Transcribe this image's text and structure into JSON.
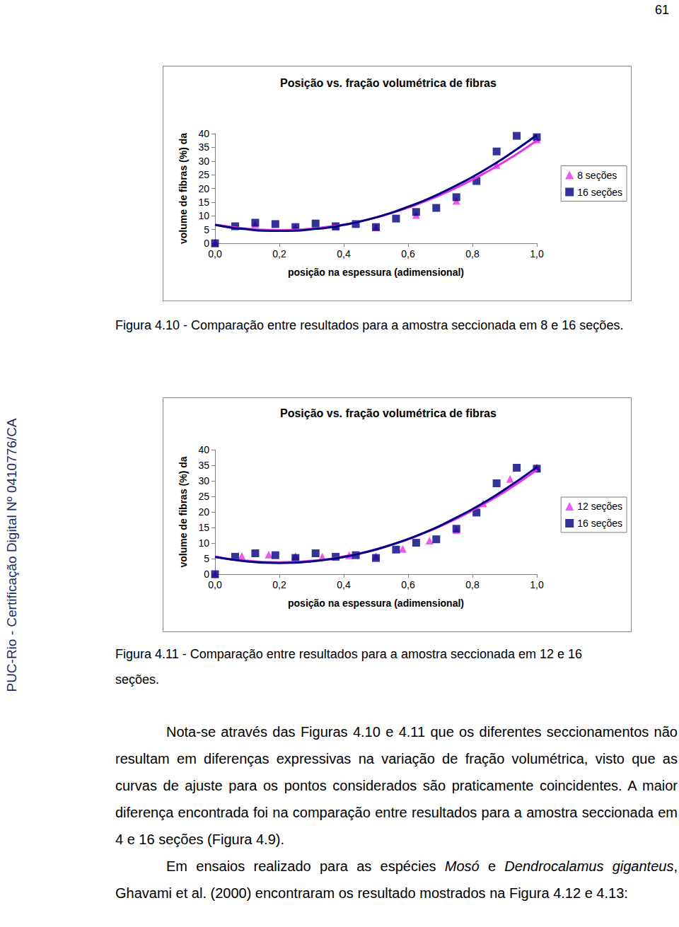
{
  "page_number": "61",
  "sidebar": "PUC-Rio - Certificação Digital Nº 0410776/CA",
  "chart_data": [
    {
      "type": "scatter",
      "title": "Posição vs. fração volumétrica de fibras",
      "x_label": "posição na espessura (adimensional)",
      "y_label": "volume de fibras (%) da",
      "xlim": [
        0,
        1
      ],
      "xticks": [
        {
          "value": 0,
          "label": "0,0"
        },
        {
          "value": 0.2,
          "label": "0,2"
        },
        {
          "value": 0.4,
          "label": "0,4"
        },
        {
          "value": 0.6,
          "label": "0,6"
        },
        {
          "value": 0.8,
          "label": "0,8"
        },
        {
          "value": 1,
          "label": "1,0"
        }
      ],
      "ylim": [
        0,
        40
      ],
      "yticks": [
        0,
        5,
        10,
        15,
        20,
        25,
        30,
        35,
        40
      ],
      "grid": false,
      "legend": "right",
      "series": [
        {
          "name": "8 seções",
          "type": "scatter",
          "color": "#e633e6",
          "marker": "triangle",
          "x": [
            0,
            0.125,
            0.25,
            0.375,
            0.5,
            0.625,
            0.75,
            0.875,
            1
          ],
          "values": [
            0,
            7.0,
            5.9,
            6.0,
            5.8,
            10.3,
            15.5,
            28.6,
            37.9
          ]
        },
        {
          "name": "16 seções",
          "type": "scatter",
          "color": "#000080",
          "marker": "square",
          "x": [
            0,
            0.0625,
            0.125,
            0.1875,
            0.25,
            0.3125,
            0.375,
            0.4375,
            0.5,
            0.5625,
            0.625,
            0.6875,
            0.75,
            0.8125,
            0.875,
            0.9375,
            1
          ],
          "values": [
            0,
            6.2,
            7.5,
            7.0,
            5.9,
            7.2,
            6.2,
            7.0,
            5.9,
            9.0,
            11.4,
            12.9,
            16.8,
            22.7,
            33.5,
            39.2,
            38.7
          ]
        },
        {
          "type": "line",
          "color": "#e633e6",
          "marker": "none",
          "line_style": "solid",
          "x": [
            0,
            0.05,
            0.1,
            0.15,
            0.2,
            0.25,
            0.3,
            0.35,
            0.4,
            0.45,
            0.5,
            0.55,
            0.6,
            0.65,
            0.7,
            0.75,
            0.8,
            0.85,
            0.9,
            0.95,
            1
          ],
          "values": [
            6.8,
            6.0,
            5.3,
            4.9,
            4.8,
            4.9,
            5.3,
            6.0,
            6.8,
            8.0,
            9.4,
            11.1,
            13.0,
            15.2,
            17.6,
            20.3,
            23.2,
            26.4,
            29.8,
            33.5,
            37.5
          ]
        },
        {
          "type": "line",
          "color": "#000080",
          "marker": "none",
          "line_style": "solid",
          "x": [
            0,
            0.05,
            0.1,
            0.15,
            0.2,
            0.25,
            0.3,
            0.35,
            0.4,
            0.45,
            0.5,
            0.55,
            0.6,
            0.65,
            0.7,
            0.75,
            0.8,
            0.85,
            0.9,
            0.95,
            1
          ],
          "values": [
            6.7,
            5.7,
            5.1,
            4.6,
            4.5,
            4.6,
            5.1,
            5.7,
            6.7,
            7.9,
            9.4,
            11.2,
            13.3,
            15.6,
            18.2,
            21.1,
            24.2,
            27.6,
            31.3,
            35.3,
            39.5
          ]
        }
      ]
    },
    {
      "type": "scatter",
      "title": "Posição vs. fração volumétrica de fibras",
      "x_label": "posição na espessura (adimensional)",
      "y_label": "volume de fibras (%) da",
      "xlim": [
        0,
        1
      ],
      "xticks": [
        {
          "value": 0,
          "label": "0,0"
        },
        {
          "value": 0.2,
          "label": "0,2"
        },
        {
          "value": 0.4,
          "label": "0,4"
        },
        {
          "value": 0.6,
          "label": "0,6"
        },
        {
          "value": 0.8,
          "label": "0,8"
        },
        {
          "value": 1,
          "label": "1,0"
        }
      ],
      "ylim": [
        0,
        40
      ],
      "yticks": [
        0,
        5,
        10,
        15,
        20,
        25,
        30,
        35,
        40
      ],
      "grid": false,
      "legend": "right",
      "series": [
        {
          "name": "12 seções",
          "type": "scatter",
          "color": "#e633e6",
          "marker": "triangle",
          "x": [
            0,
            0.0833,
            0.1667,
            0.25,
            0.3333,
            0.4167,
            0.5,
            0.5833,
            0.6667,
            0.75,
            0.8333,
            0.9167,
            1
          ],
          "values": [
            0,
            5.8,
            6.3,
            5.8,
            5.6,
            6.1,
            5.8,
            8.1,
            10.8,
            14.2,
            22.7,
            30.6,
            34.4
          ]
        },
        {
          "name": "16 seções",
          "type": "scatter",
          "color": "#000080",
          "marker": "square",
          "x": [
            0,
            0.0625,
            0.125,
            0.1875,
            0.25,
            0.3125,
            0.375,
            0.4375,
            0.5,
            0.5625,
            0.625,
            0.6875,
            0.75,
            0.8125,
            0.875,
            0.9375,
            1
          ],
          "values": [
            0,
            5.6,
            6.7,
            6.1,
            5.2,
            6.7,
            5.6,
            6.1,
            5.2,
            7.9,
            10.1,
            11.2,
            14.6,
            19.8,
            29.2,
            34.2,
            33.9
          ]
        },
        {
          "type": "line",
          "color": "#e633e6",
          "marker": "none",
          "line_style": "solid",
          "x": [
            0,
            0.05,
            0.1,
            0.15,
            0.2,
            0.25,
            0.3,
            0.35,
            0.4,
            0.45,
            0.5,
            0.55,
            0.6,
            0.65,
            0.7,
            0.75,
            0.8,
            0.85,
            0.9,
            0.95,
            1
          ],
          "values": [
            5.7,
            4.8,
            4.3,
            3.9,
            3.8,
            3.9,
            4.3,
            4.8,
            5.7,
            6.7,
            8.0,
            9.5,
            11.2,
            13.2,
            15.4,
            17.8,
            20.5,
            23.4,
            26.5,
            29.9,
            33.5
          ]
        },
        {
          "type": "line",
          "color": "#000080",
          "marker": "none",
          "line_style": "solid",
          "x": [
            0,
            0.05,
            0.1,
            0.15,
            0.2,
            0.25,
            0.3,
            0.35,
            0.4,
            0.45,
            0.5,
            0.55,
            0.6,
            0.65,
            0.7,
            0.75,
            0.8,
            0.85,
            0.9,
            0.95,
            1
          ],
          "values": [
            5.5,
            4.7,
            4.1,
            3.7,
            3.6,
            3.7,
            4.1,
            4.7,
            5.5,
            6.6,
            7.9,
            9.5,
            11.3,
            13.3,
            15.6,
            18.2,
            20.9,
            23.9,
            27.2,
            30.7,
            34.4
          ]
        }
      ]
    }
  ],
  "captions": [
    "Figura 4.10 - Comparação entre resultados para a amostra seccionada em 8 e 16 seções.",
    "Figura 4.11 - Comparação entre resultados para a amostra seccionada em 12 e 16 seções."
  ],
  "paragraphs": [
    [
      {
        "text": "Nota-se através das Figuras 4.10 e 4.11 que os diferentes seccionamentos não resultam em diferenças expressivas na variação de fração volumétrica, visto que as curvas de ajuste para os pontos considerados são praticamente coincidentes. A maior diferença encontrada foi na comparação entre resultados para a amostra seccionada em 4 e 16 seções (Figura 4.9)."
      }
    ],
    [
      {
        "text": "Em ensaios realizado para as espécies "
      },
      {
        "text": "Mosó",
        "italic": true
      },
      {
        "text": " e "
      },
      {
        "text": "Dendrocalamus giganteus",
        "italic": true
      },
      {
        "text": ", Ghavami et al. (2000) encontraram os resultado mostrados na Figura 4.12 e 4.13:"
      }
    ]
  ]
}
